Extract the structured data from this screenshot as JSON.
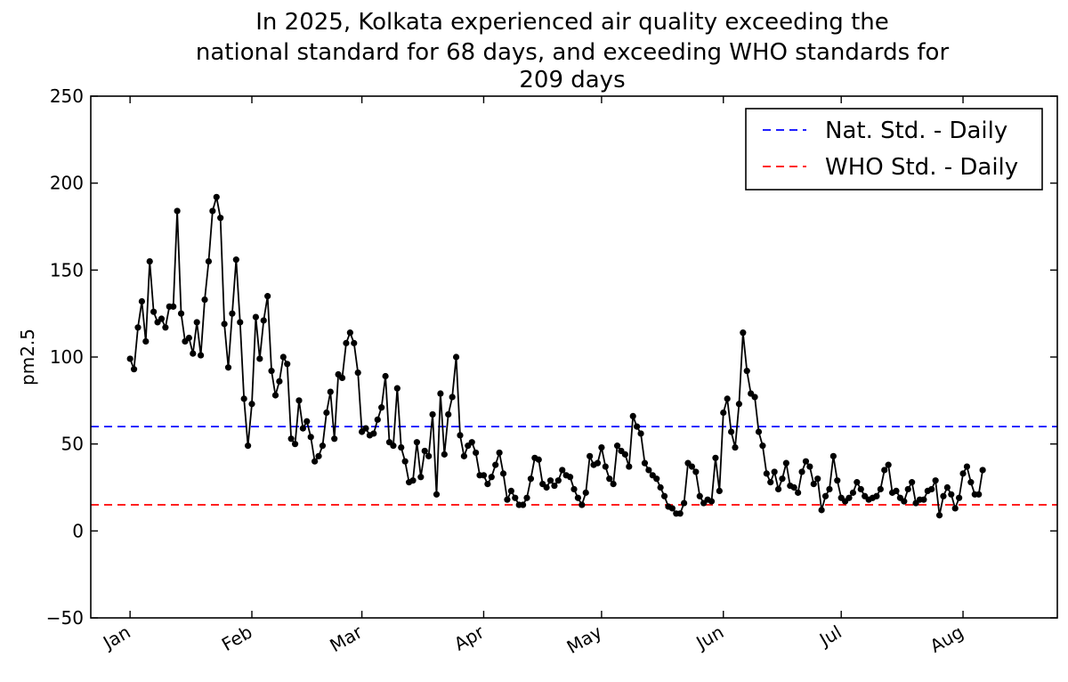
{
  "chart_data": {
    "type": "line",
    "title_lines": [
      "In 2025, Kolkata experienced air quality exceeding the",
      "national standard for 68 days, and exceeding WHO standards for",
      "209 days"
    ],
    "ylabel": "pm2.5",
    "xlabel": "",
    "ylim": [
      -50,
      250
    ],
    "y_ticks": [
      "250",
      "200",
      "150",
      "100",
      "50",
      "0",
      "−50"
    ],
    "x_range": [
      "2024-12-22",
      "2025-08-25"
    ],
    "x_ticks": [
      {
        "label": "Jan",
        "date": "2025-01-01"
      },
      {
        "label": "Feb",
        "date": "2025-02-01"
      },
      {
        "label": "Mar",
        "date": "2025-03-01"
      },
      {
        "label": "Apr",
        "date": "2025-04-01"
      },
      {
        "label": "May",
        "date": "2025-05-01"
      },
      {
        "label": "Jun",
        "date": "2025-06-01"
      },
      {
        "label": "Jul",
        "date": "2025-07-01"
      },
      {
        "label": "Aug",
        "date": "2025-08-01"
      }
    ],
    "grid": false,
    "legend_position": "top-right",
    "reference_lines": [
      {
        "name": "Nat. Std. - Daily",
        "value": 60,
        "color": "#0000ff",
        "style": "dashed"
      },
      {
        "name": "WHO Std. - Daily",
        "value": 15,
        "color": "#ff0000",
        "style": "dashed"
      }
    ],
    "series": [
      {
        "color": "#000000",
        "start_date": "2025-01-01",
        "values": [
          99,
          93,
          117,
          132,
          109,
          155,
          126,
          120,
          122,
          117,
          129,
          129,
          184,
          125,
          109,
          111,
          102,
          120,
          101,
          133,
          155,
          184,
          192,
          180,
          119,
          94,
          125,
          156,
          120,
          76,
          49,
          73,
          123,
          99,
          121,
          135,
          92,
          78,
          86,
          100,
          96,
          53,
          50,
          75,
          59,
          63,
          54,
          40,
          43,
          49,
          68,
          80,
          53,
          90,
          88,
          108,
          114,
          108,
          91,
          57,
          59,
          55,
          56,
          64,
          71,
          89,
          51,
          49,
          82,
          48,
          40,
          28,
          29,
          51,
          31,
          46,
          43,
          67,
          21,
          79,
          44,
          67,
          77,
          100,
          55,
          43,
          49,
          51,
          45,
          32,
          32,
          27,
          31,
          38,
          45,
          33,
          18,
          23,
          19,
          15,
          15,
          19,
          30,
          42,
          41,
          27,
          25,
          29,
          26,
          29,
          35,
          32,
          31,
          24,
          19,
          15,
          22,
          43,
          38,
          39,
          48,
          37,
          30,
          27,
          49,
          46,
          44,
          37,
          66,
          60,
          56,
          39,
          35,
          32,
          30,
          25,
          20,
          14,
          13,
          10,
          10,
          16,
          39,
          37,
          34,
          20,
          16,
          18,
          17,
          42,
          23,
          68,
          76,
          57,
          48,
          73,
          114,
          92,
          79,
          77,
          57,
          49,
          33,
          28,
          34,
          24,
          30,
          39,
          26,
          25,
          22,
          34,
          40,
          37,
          27,
          30,
          12,
          20,
          24,
          43,
          29,
          19,
          17,
          19,
          22,
          28,
          24,
          20,
          18,
          19,
          20,
          24,
          35,
          38,
          22,
          23,
          19,
          17,
          24,
          28,
          16,
          18,
          18,
          23,
          24,
          29,
          9,
          20,
          25,
          21,
          13,
          19,
          33,
          37,
          28,
          21,
          21,
          35
        ]
      }
    ]
  }
}
